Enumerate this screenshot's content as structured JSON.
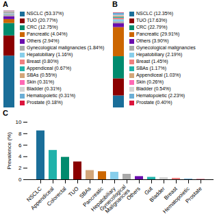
{
  "chart_data": [
    {
      "type": "bar",
      "stacked": true,
      "title": "A",
      "categories": [
        null
      ],
      "series": [
        {
          "name": "NSCLC (53.37%)",
          "color": "#1A6E99",
          "values": [
            53.37
          ]
        },
        {
          "name": "TUO (20.77%)",
          "color": "#8B0000",
          "values": [
            20.77
          ]
        },
        {
          "name": "CRC (12.75%)",
          "color": "#008B6E",
          "values": [
            12.75
          ]
        },
        {
          "name": "Pancreatic (4.04%)",
          "color": "#CC6600",
          "values": [
            4.04
          ]
        },
        {
          "name": "Others (2.94%)",
          "color": "#6A0DAD",
          "values": [
            2.94
          ]
        },
        {
          "name": "Gynecological malignancies (1.84%)",
          "color": "#A9A9A9",
          "values": [
            1.84
          ]
        },
        {
          "name": "Hepatobiliary (1.16%)",
          "color": "#87CEEB",
          "values": [
            1.16
          ]
        },
        {
          "name": "Breast (0.80%)",
          "color": "#F08080",
          "values": [
            0.8
          ]
        },
        {
          "name": "Appendiceal (0.67%)",
          "color": "#20B2AA",
          "values": [
            0.67
          ]
        },
        {
          "name": "SBAs (0.55%)",
          "color": "#D2A679",
          "values": [
            0.55
          ]
        },
        {
          "name": "Skin (0.31%)",
          "color": "#FF69B4",
          "values": [
            0.31
          ]
        },
        {
          "name": "Bladder (0.31%)",
          "color": "#D3D3D3",
          "values": [
            0.31
          ]
        },
        {
          "name": "Hematopoietic (0.31%)",
          "color": "#6BAED6",
          "values": [
            0.31
          ]
        },
        {
          "name": "Prostate (0.18%)",
          "color": "#DC143C",
          "values": [
            0.18
          ]
        }
      ],
      "ylim": [
        0,
        100
      ],
      "tick_labels": false,
      "legend": "right"
    },
    {
      "type": "bar",
      "stacked": true,
      "title": "B",
      "categories": [
        null
      ],
      "series": [
        {
          "name": "NSCLC (12.35%)",
          "color": "#1A6E99",
          "values": [
            12.35
          ]
        },
        {
          "name": "TUO (17.63%)",
          "color": "#8B0000",
          "values": [
            17.63
          ]
        },
        {
          "name": "CRC (22.79%)",
          "color": "#008B6E",
          "values": [
            22.79
          ]
        },
        {
          "name": "Pancreatic (29.91%)",
          "color": "#CC6600",
          "values": [
            29.91
          ]
        },
        {
          "name": "Others (3.90%)",
          "color": "#6A0DAD",
          "values": [
            3.9
          ]
        },
        {
          "name": "Gynecological malignancies",
          "color": "#A9A9A9",
          "values": [
            2.0
          ]
        },
        {
          "name": "Hepatobiliary (2.19%)",
          "color": "#87CEEB",
          "values": [
            2.19
          ]
        },
        {
          "name": "Breast (1.45%)",
          "color": "#F08080",
          "values": [
            1.45
          ]
        },
        {
          "name": "SBAs (1.17%)",
          "color": "#20B2AA",
          "values": [
            1.17
          ]
        },
        {
          "name": "Appendiceal (1.03%)",
          "color": "#D2A679",
          "values": [
            1.03
          ]
        },
        {
          "name": "Skin (0.26%)",
          "color": "#FF69B4",
          "values": [
            0.26
          ]
        },
        {
          "name": "Bladder (0.54%)",
          "color": "#D3D3D3",
          "values": [
            0.54
          ]
        },
        {
          "name": "Hematopoietic (2.23%)",
          "color": "#6BAED6",
          "values": [
            2.23
          ]
        },
        {
          "name": "Prostate (0.40%)",
          "color": "#DC143C",
          "values": [
            0.4
          ]
        }
      ],
      "ylim": [
        0,
        100
      ],
      "tick_labels": false,
      "legend": "right"
    },
    {
      "type": "bar",
      "title": "C",
      "categories": [
        "NSCLC",
        "Appendiceal",
        "Colorectal",
        "TUO",
        "SBAs",
        "Pancreatic",
        "Hepatobiliary",
        "Gynecological\nMalignancies",
        "Others",
        "Gut",
        "Bladder",
        "Breast",
        "Hematopoietic",
        "Prostate"
      ],
      "values": [
        8.5,
        5.1,
        3.9,
        3.1,
        1.6,
        1.4,
        1.3,
        0.95,
        0.55,
        0.42,
        0.35,
        0.25,
        0.12,
        0.05
      ],
      "colors": [
        "#1A6E99",
        "#20B2AA",
        "#008B6E",
        "#8B0000",
        "#D2A679",
        "#CC6600",
        "#87CEEB",
        "#A9A9A9",
        "#6A0DAD",
        "#20B2AA",
        "#D3D3D3",
        "#F08080",
        "#6BAED6",
        "#DC143C"
      ],
      "ylabel": "Prevalence (%)",
      "ylim": [
        0,
        10
      ],
      "yticks": [
        0,
        2,
        4,
        6,
        8,
        10
      ],
      "grid": false
    }
  ]
}
